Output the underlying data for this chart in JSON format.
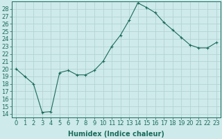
{
  "x": [
    0,
    1,
    2,
    3,
    4,
    5,
    6,
    7,
    8,
    9,
    10,
    11,
    12,
    13,
    14,
    15,
    16,
    17,
    18,
    19,
    20,
    21,
    22,
    23
  ],
  "y": [
    20.0,
    19.0,
    18.0,
    14.2,
    14.3,
    19.5,
    19.8,
    19.2,
    19.2,
    19.8,
    21.0,
    23.0,
    24.5,
    26.5,
    28.8,
    28.2,
    27.5,
    26.2,
    25.2,
    24.2,
    23.2,
    22.8,
    22.8,
    23.5
  ],
  "line_color": "#1a6b5a",
  "marker": "+",
  "background_color": "#ceeaea",
  "grid_color": "#b0d0d0",
  "xlabel": "Humidex (Indice chaleur)",
  "ylabel_ticks": [
    14,
    15,
    16,
    17,
    18,
    19,
    20,
    21,
    22,
    23,
    24,
    25,
    26,
    27,
    28
  ],
  "ylim": [
    13.5,
    29.0
  ],
  "xlim": [
    -0.5,
    23.5
  ],
  "xlabel_fontsize": 7,
  "tick_fontsize": 6,
  "tick_color": "#1a6b5a",
  "spine_color": "#1a6b5a",
  "fig_width": 3.2,
  "fig_height": 2.0,
  "dpi": 100
}
